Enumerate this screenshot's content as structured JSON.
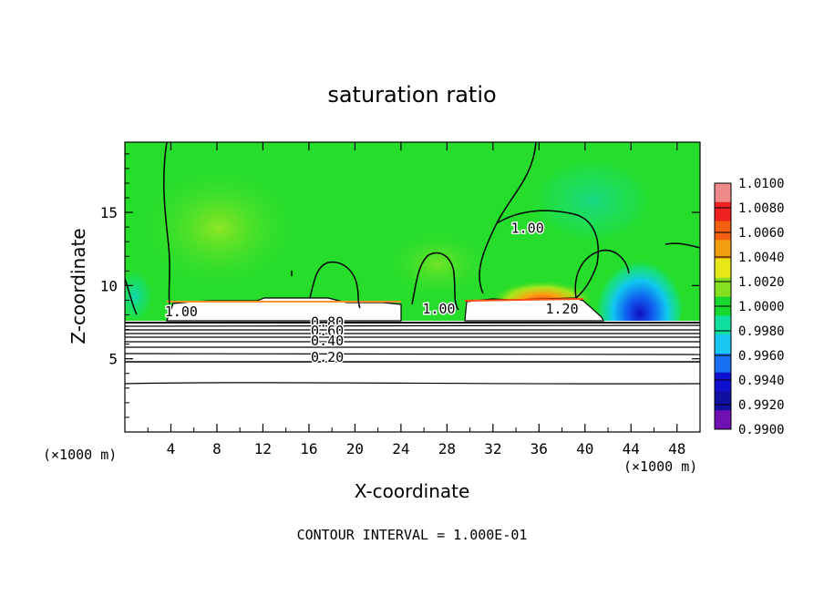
{
  "chart_data": {
    "type": "heatmap",
    "title": "saturation ratio",
    "xlabel": "X-coordinate",
    "ylabel": "Z-coordinate",
    "x_units": "(×1000 m)",
    "xlim": [
      0,
      50
    ],
    "ylim": [
      0,
      19.8
    ],
    "x_ticks": [
      4,
      8,
      12,
      16,
      20,
      24,
      28,
      32,
      36,
      40,
      44,
      48
    ],
    "x_tick_labels": [
      "4",
      "8",
      "12",
      "16",
      "20",
      "24",
      "28",
      "32",
      "36",
      "40",
      "44",
      "48"
    ],
    "y_ticks": [
      5,
      10,
      15
    ],
    "y_tick_labels": [
      "5",
      "10",
      "15"
    ],
    "colorbar": {
      "min": 0.99,
      "max": 1.01,
      "labels": [
        "1.0100",
        "1.0080",
        "1.0060",
        "1.0040",
        "1.0020",
        "1.0000",
        "0.9980",
        "0.9960",
        "0.9940",
        "0.9920",
        "0.9900"
      ],
      "colors": [
        "#ef8a8a",
        "#ee2020",
        "#f06010",
        "#f0a010",
        "#e8e818",
        "#86e020",
        "#18d830",
        "#10e0a0",
        "#18c8f0",
        "#1870f0",
        "#1010d0",
        "#1010a0",
        "#7010b0"
      ]
    },
    "contour_labels": [
      {
        "text": "1.00",
        "x": 4.9,
        "z": 7.9
      },
      {
        "text": "1.00",
        "x": 27.3,
        "z": 8.1
      },
      {
        "text": "1.00",
        "x": 35.0,
        "z": 13.6
      },
      {
        "text": "1.20",
        "x": 38.0,
        "z": 8.1
      },
      {
        "text": "0.80",
        "x": 17.6,
        "z": 7.2
      },
      {
        "text": "0.60",
        "x": 17.6,
        "z": 6.6
      },
      {
        "text": "0.40",
        "x": 17.6,
        "z": 5.9
      },
      {
        "text": "0.20",
        "x": 17.6,
        "z": 4.8
      }
    ],
    "footnote": "CONTOUR INTERVAL = 1.000E-01"
  }
}
